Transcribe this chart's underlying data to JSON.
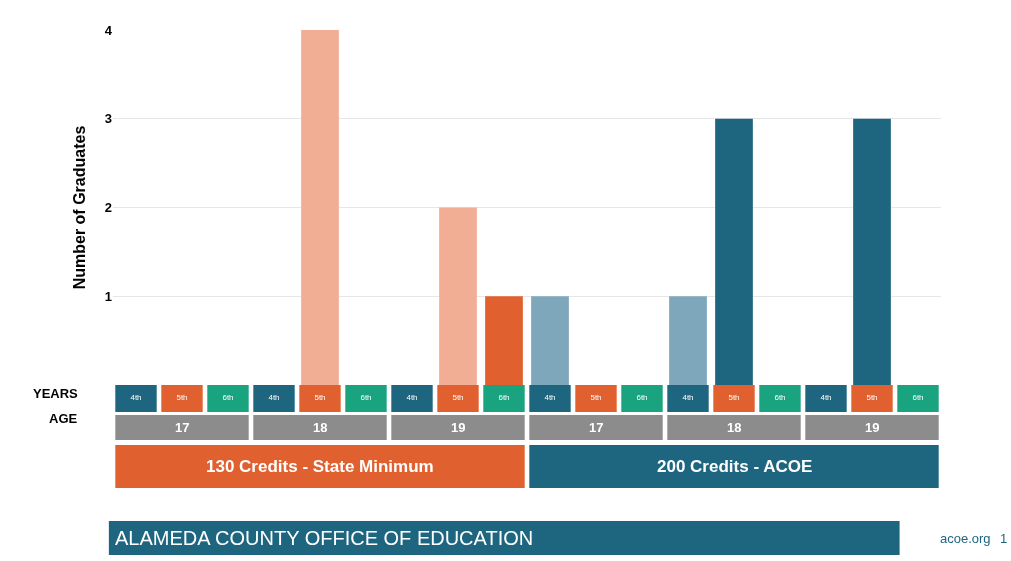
{
  "chart_data": {
    "type": "bar",
    "ylabel": "Number of Graduates",
    "categories": [
      "4th",
      "5th",
      "6th",
      "4th",
      "5th",
      "6th",
      "4th",
      "5th",
      "6th",
      "4th",
      "5th",
      "6th",
      "4th",
      "5th",
      "6th",
      "4th",
      "5th",
      "6th"
    ],
    "values": [
      null,
      null,
      null,
      null,
      4,
      null,
      null,
      2,
      1,
      1,
      null,
      null,
      1,
      3,
      null,
      null,
      3,
      null
    ],
    "colors": [
      "#f2ae95",
      "#f2ae95",
      "#e0612f",
      "#f2ae95",
      "#f2ae95",
      "#e0612f",
      "#f2ae95",
      "#f2ae95",
      "#e0612f",
      "#7ea7bb",
      "#1e6680",
      "#1e6680",
      "#7ea7bb",
      "#1e6680",
      "#1e6680",
      "#7ea7bb",
      "#1e6680",
      "#1e6680"
    ],
    "ylim": [
      0,
      4
    ],
    "yticks": [
      1,
      2,
      3,
      4
    ],
    "grid": "y",
    "annotations": [
      "YEARS",
      "AGE",
      "17",
      "18",
      "19",
      "17",
      "18",
      "19",
      "130 Credits - State Minimum",
      "200 Credits - ACOE",
      "ALAMEDA COUNTY OFFICE OF EDUCATION",
      "acoe.org",
      "1"
    ]
  }
}
